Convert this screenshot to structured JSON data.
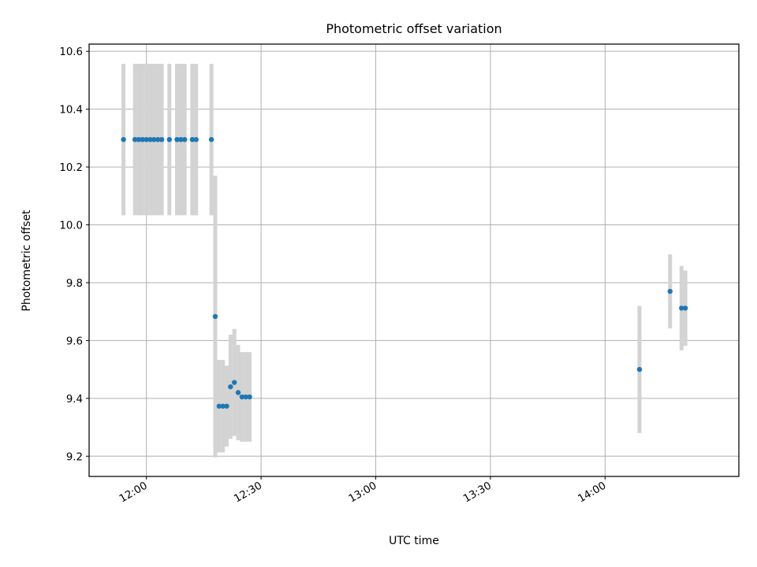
{
  "chart_data": {
    "type": "scatter",
    "title": "Photometric offset variation",
    "xlabel": "UTC time",
    "ylabel": "Photometric offset",
    "xlim": [
      "11:45",
      "14:35"
    ],
    "ylim": [
      9.13,
      10.625
    ],
    "x_ticks": [
      "12:00",
      "12:30",
      "13:00",
      "13:30",
      "14:00"
    ],
    "y_ticks": [
      "9.2",
      "9.4",
      "9.6",
      "9.8",
      "10.0",
      "10.2",
      "10.4",
      "10.6"
    ],
    "grid": true,
    "colors": {
      "points": "#1f77b4",
      "error_bars": "#d3d3d3"
    },
    "points": [
      {
        "x": "11:54",
        "y": 10.295,
        "err": 0.262
      },
      {
        "x": "11:57",
        "y": 10.295,
        "err": 0.262
      },
      {
        "x": "11:58",
        "y": 10.295,
        "err": 0.262
      },
      {
        "x": "11:59",
        "y": 10.295,
        "err": 0.262
      },
      {
        "x": "12:00",
        "y": 10.295,
        "err": 0.262
      },
      {
        "x": "12:01",
        "y": 10.295,
        "err": 0.262
      },
      {
        "x": "12:02",
        "y": 10.295,
        "err": 0.262
      },
      {
        "x": "12:03",
        "y": 10.295,
        "err": 0.262
      },
      {
        "x": "12:04",
        "y": 10.295,
        "err": 0.262
      },
      {
        "x": "12:06",
        "y": 10.295,
        "err": 0.262
      },
      {
        "x": "12:08",
        "y": 10.295,
        "err": 0.262
      },
      {
        "x": "12:09",
        "y": 10.295,
        "err": 0.262
      },
      {
        "x": "12:10",
        "y": 10.295,
        "err": 0.262
      },
      {
        "x": "12:12",
        "y": 10.295,
        "err": 0.262
      },
      {
        "x": "12:13",
        "y": 10.295,
        "err": 0.262
      },
      {
        "x": "12:17",
        "y": 10.295,
        "err": 0.262
      },
      {
        "x": "12:18",
        "y": 9.683,
        "err": 0.487
      },
      {
        "x": "12:19",
        "y": 9.373,
        "err": 0.16
      },
      {
        "x": "12:20",
        "y": 9.373,
        "err": 0.16
      },
      {
        "x": "12:21",
        "y": 9.373,
        "err": 0.14
      },
      {
        "x": "12:22",
        "y": 9.44,
        "err": 0.18
      },
      {
        "x": "12:23",
        "y": 9.455,
        "err": 0.185
      },
      {
        "x": "12:24",
        "y": 9.42,
        "err": 0.165
      },
      {
        "x": "12:25",
        "y": 9.405,
        "err": 0.155
      },
      {
        "x": "12:26",
        "y": 9.405,
        "err": 0.155
      },
      {
        "x": "12:27",
        "y": 9.405,
        "err": 0.155
      },
      {
        "x": "14:09",
        "y": 9.5,
        "err": 0.22
      },
      {
        "x": "14:17",
        "y": 9.77,
        "err": 0.128
      },
      {
        "x": "14:20",
        "y": 9.712,
        "err": 0.146
      },
      {
        "x": "14:21",
        "y": 9.712,
        "err": 0.13
      }
    ]
  }
}
